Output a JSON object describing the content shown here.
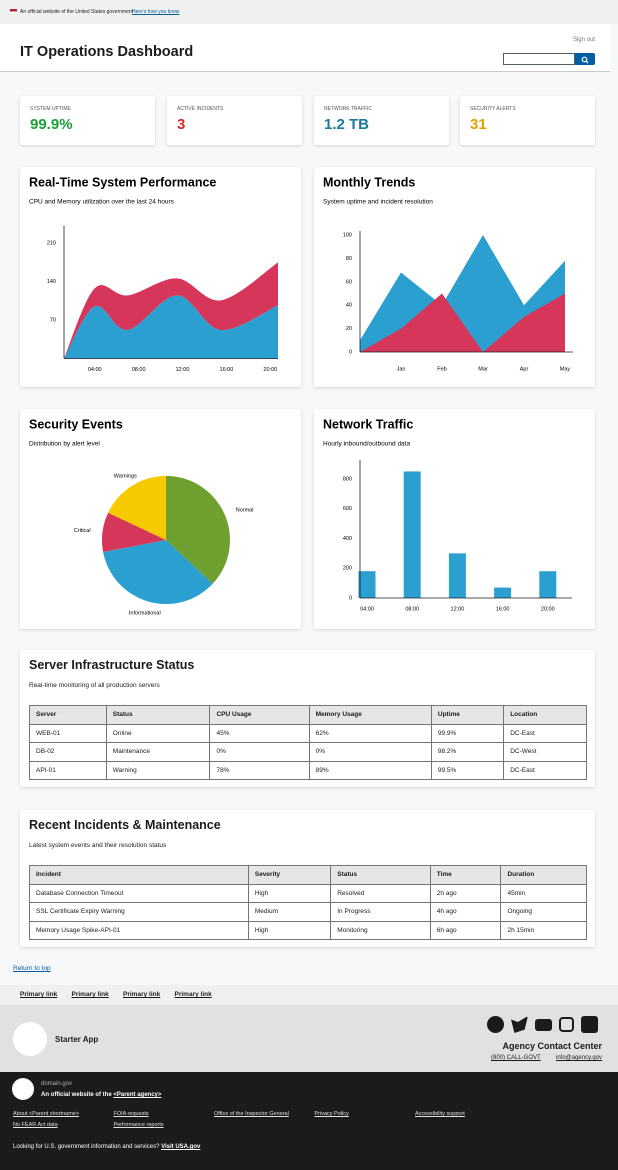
{
  "banner": {
    "text": "An official website of the United States government",
    "link": "Here's how you know"
  },
  "header": {
    "title": "IT Operations Dashboard",
    "sign_out": "Sign out"
  },
  "stats": [
    {
      "label": "SYSTEM UPTIME",
      "value": "99.9%",
      "color": "#1a9e3a"
    },
    {
      "label": "ACTIVE INCIDENTS",
      "value": "3",
      "color": "#d62828"
    },
    {
      "label": "NETWORK TRAFFIC",
      "value": "1.2 TB",
      "color": "#1a7a99"
    },
    {
      "label": "SECURITY ALERTS",
      "value": "31",
      "color": "#e5a000"
    }
  ],
  "chart_data": [
    {
      "type": "area",
      "stacked": true,
      "smooth": true,
      "title": "Real-Time System Performance",
      "subtitle": "CPU and Memory utilization over the last 24 hours",
      "x": [
        1.2,
        4,
        7,
        11.5,
        15.5,
        20.7
      ],
      "xlim": [
        1.2,
        20.7
      ],
      "xticks": [
        {
          "value": 4,
          "label": "04:00"
        },
        {
          "value": 8,
          "label": "08:00"
        },
        {
          "value": 12,
          "label": "12:00"
        },
        {
          "value": 16,
          "label": "16:00"
        },
        {
          "value": 20,
          "label": "20:00"
        }
      ],
      "ylim": [
        0,
        235
      ],
      "yticks": [
        70,
        140,
        210
      ],
      "series": [
        {
          "color": "#2b9fd0",
          "values": [
            0,
            95,
            52,
            115,
            52,
            97
          ]
        },
        {
          "color": "#d6365a",
          "values": [
            0,
            33,
            63,
            31,
            54,
            78
          ]
        }
      ]
    },
    {
      "type": "area",
      "stacked": false,
      "smooth": false,
      "title": "Monthly Trends",
      "subtitle": "System uptime and incident resolution",
      "categories": [
        null,
        "Jan",
        "Feb",
        "Mar",
        "Apr",
        "May"
      ],
      "ylim": [
        0,
        100
      ],
      "yticks": [
        0,
        20,
        40,
        60,
        80,
        100
      ],
      "series": [
        {
          "color": "#2b9fd0",
          "values": [
            10,
            68,
            40,
            100,
            40,
            78
          ]
        },
        {
          "color": "#d6365a",
          "values": [
            0,
            20,
            50,
            0,
            30,
            50
          ]
        }
      ]
    },
    {
      "type": "pie",
      "title": "Security Events",
      "subtitle": "Distribution by alert level",
      "categories": [
        "Normal",
        "Informational",
        "Critical",
        "Warnings"
      ],
      "values": [
        37,
        35,
        10,
        18
      ],
      "colors": [
        "#6f9f2e",
        "#2b9fd0",
        "#d6365a",
        "#f7ca00"
      ]
    },
    {
      "type": "bar",
      "title": "Network Traffic",
      "subtitle": "Hourly inbound/outbound data",
      "categories": [
        "04:00",
        "08:00",
        "12:00",
        "16:00",
        "20:00"
      ],
      "values": [
        180,
        850,
        300,
        70,
        180
      ],
      "color": "#2b9fd0",
      "ylim": [
        0,
        900
      ],
      "yticks": [
        0,
        200,
        400,
        600,
        800
      ]
    }
  ],
  "tables": [
    {
      "title": "Server Infrastructure Status",
      "subtitle": "Real-time monitoring of all production servers",
      "columns": [
        "Server",
        "Status",
        "CPU Usage",
        "Memory Usage",
        "Uptime",
        "Location"
      ],
      "rows": [
        [
          "WEB-01",
          "Online",
          "45%",
          "62%",
          "99.9%",
          "DC-East"
        ],
        [
          "DB-02",
          "Maintenance",
          "0%",
          "0%",
          "98.2%",
          "DC-West"
        ],
        [
          "API-01",
          "Warning",
          "78%",
          "89%",
          "99.5%",
          "DC-East"
        ]
      ]
    },
    {
      "title": "Recent Incidents & Maintenance",
      "subtitle": "Latest system events and their resolution status",
      "columns": [
        "Incident",
        "Severity",
        "Status",
        "Time",
        "Duration"
      ],
      "rows": [
        [
          "Database Connection Timeout",
          "High",
          "Resolved",
          "2h ago",
          "45min"
        ],
        [
          "SSL Certificate Expiry Warning",
          "Medium",
          "In Progress",
          "4h ago",
          "Ongoing"
        ],
        [
          "Memory Usage Spike-API-01",
          "High",
          "Monitoring",
          "6h ago",
          "2h 15min"
        ]
      ]
    }
  ],
  "return_to_top": "Return to top",
  "primary_links": [
    "Primary link",
    "Primary link",
    "Primary link",
    "Primary link"
  ],
  "footer": {
    "app_name": "Starter App",
    "contact_title": "Agency Contact Center",
    "phone": "(800) CALL-GOVT",
    "email": "info@agency.gov"
  },
  "identifier": {
    "domain": "domain.gov",
    "official_prefix": "An official website of the",
    "parent": "<Parent agency>",
    "links": [
      "About <Parent shortname>",
      "FOIA requests",
      "Office of the Inspector General",
      "Privacy Policy",
      "Accessibility support",
      "No FEAR Act data",
      "Performance reports"
    ],
    "usa_prompt": "Looking for U.S. government information and services?",
    "usa_link": "Visit USA.gov"
  }
}
